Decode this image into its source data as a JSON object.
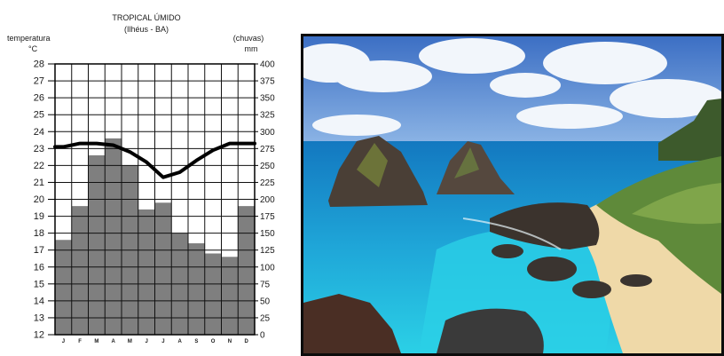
{
  "chart_data": {
    "type": "bar",
    "title": "TROPICAL ÚMIDO",
    "subtitle": "(Ilhéus - BA)",
    "left_axis": {
      "label": "temperatura",
      "unit": "°C",
      "min": 12,
      "max": 28,
      "step": 1
    },
    "right_axis": {
      "label": "(chuvas)",
      "unit": "mm",
      "min": 0,
      "max": 400,
      "step": 25
    },
    "categories": [
      "J",
      "F",
      "M",
      "A",
      "M",
      "J",
      "J",
      "A",
      "S",
      "O",
      "N",
      "D"
    ],
    "series": [
      {
        "kind": "bar",
        "axis": "right",
        "color": "#7f7f7f",
        "values": [
          140,
          190,
          265,
          290,
          250,
          185,
          195,
          150,
          135,
          120,
          115,
          190
        ]
      },
      {
        "kind": "line",
        "axis": "left",
        "color": "#000000",
        "values": [
          23.1,
          23.3,
          23.3,
          23.2,
          22.8,
          22.2,
          21.3,
          21.6,
          22.3,
          22.9,
          23.3,
          23.3
        ]
      }
    ],
    "grid": true,
    "legend": "none"
  },
  "photo": {
    "icon": "beach-photo",
    "colors": {
      "sky": "#4f7fcc",
      "sea": "#1fa6d8",
      "lagoon": "#2bd0e6",
      "sand": "#efd9a8",
      "rock": "#4a3f36",
      "vegetation": "#5f8a3a"
    }
  }
}
